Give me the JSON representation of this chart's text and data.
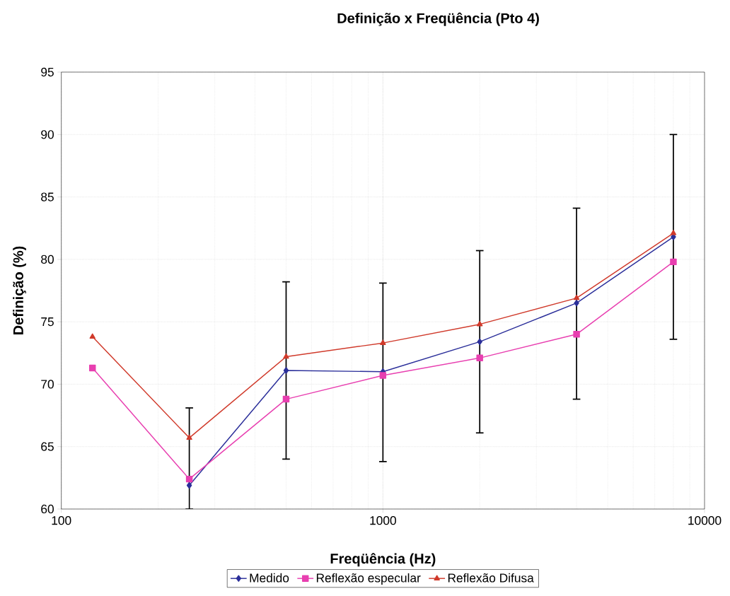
{
  "chart_data": {
    "type": "line",
    "title": "Definição x Freqüência (Pto 4)",
    "xlabel": "Freqüência (Hz)",
    "ylabel": "Definição (%)",
    "x": [
      125,
      250,
      500,
      1000,
      2000,
      4000,
      8000
    ],
    "log": "x",
    "xlim": [
      100,
      10000
    ],
    "xticks": [
      100,
      1000,
      10000
    ],
    "ylim": [
      60,
      95
    ],
    "yticks": [
      60,
      65,
      70,
      75,
      80,
      85,
      90,
      95
    ],
    "grid": true,
    "legend": "bottom",
    "series": [
      {
        "name": "Medido",
        "color": "#2b2f9a",
        "marker": "diamond",
        "values": [
          null,
          61.9,
          71.1,
          71.0,
          73.4,
          76.5,
          81.8
        ],
        "errors": [
          null,
          [
            60,
            68.1
          ],
          [
            64.0,
            78.2
          ],
          [
            63.8,
            78.1
          ],
          [
            66.1,
            80.7
          ],
          [
            68.8,
            84.1
          ],
          [
            73.6,
            90.0
          ]
        ]
      },
      {
        "name": "Reflexão especular",
        "color": "#e83fb0",
        "marker": "square",
        "values": [
          71.3,
          62.4,
          68.8,
          70.7,
          72.1,
          74.0,
          79.8
        ]
      },
      {
        "name": "Reflexão Difusa",
        "color": "#d03a2b",
        "marker": "triangle",
        "values": [
          73.8,
          65.7,
          72.2,
          73.3,
          74.8,
          76.9,
          82.1
        ]
      }
    ]
  }
}
